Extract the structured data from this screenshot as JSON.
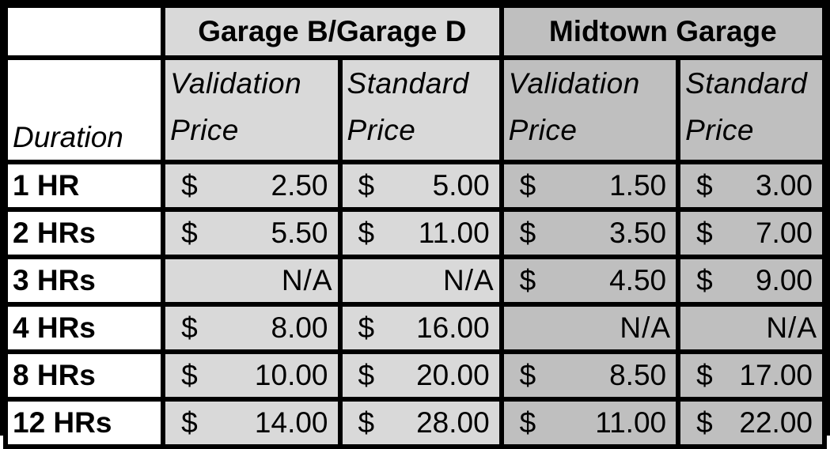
{
  "table": {
    "header": {
      "blank": "",
      "group_b": "Garage B/Garage D",
      "group_midtown": "Midtown Garage",
      "duration": "Duration",
      "validation_price": "Validation Price",
      "standard_price": "Standard Price"
    },
    "currency_symbol": "$",
    "rows": [
      {
        "duration": "1 HR",
        "b_validation": "2.50",
        "b_standard": "5.00",
        "m_validation": "1.50",
        "m_standard": "3.00"
      },
      {
        "duration": "2 HRs",
        "b_validation": "5.50",
        "b_standard": "11.00",
        "m_validation": "3.50",
        "m_standard": "7.00"
      },
      {
        "duration": "3 HRs",
        "b_validation": "N/A",
        "b_standard": "N/A",
        "m_validation": "4.50",
        "m_standard": "9.00"
      },
      {
        "duration": "4 HRs",
        "b_validation": "8.00",
        "b_standard": "16.00",
        "m_validation": "N/A",
        "m_standard": "N/A"
      },
      {
        "duration": "8 HRs",
        "b_validation": "10.00",
        "b_standard": "20.00",
        "m_validation": "8.50",
        "m_standard": "17.00"
      },
      {
        "duration": "12 HRs",
        "b_validation": "14.00",
        "b_standard": "28.00",
        "m_validation": "11.00",
        "m_standard": "22.00"
      }
    ]
  },
  "colors": {
    "grid": "#000000",
    "white_cell": "#ffffff",
    "garage_b_fill": "#d9d9d9",
    "midtown_fill": "#bfbfbf"
  }
}
